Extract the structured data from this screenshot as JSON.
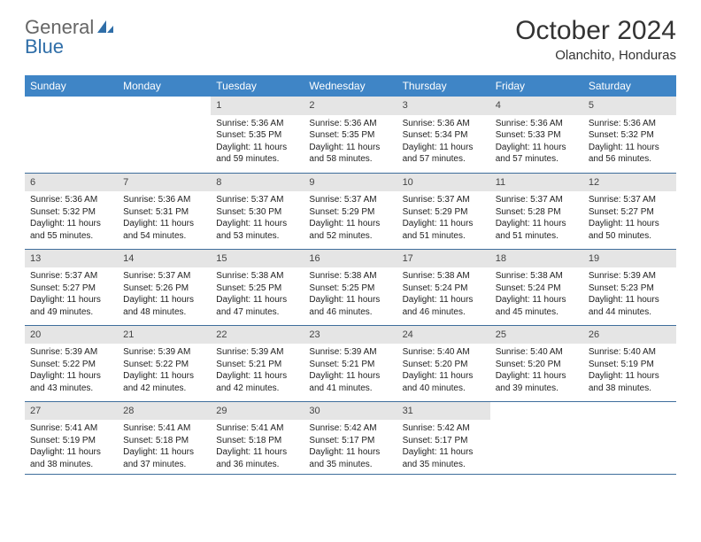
{
  "brand": {
    "part1": "General",
    "part2": "Blue"
  },
  "title": "October 2024",
  "location": "Olanchito, Honduras",
  "colors": {
    "header_bg": "#3f85c6",
    "header_text": "#ffffff",
    "daynum_bg": "#e5e5e5",
    "row_divider": "#3f6e9c",
    "logo_blue": "#2f6ea8",
    "text": "#222222"
  },
  "typography": {
    "title_fontsize": 30,
    "location_fontsize": 15,
    "dayhead_fontsize": 12,
    "body_fontsize": 10
  },
  "day_headers": [
    "Sunday",
    "Monday",
    "Tuesday",
    "Wednesday",
    "Thursday",
    "Friday",
    "Saturday"
  ],
  "weeks": [
    [
      {
        "empty": true
      },
      {
        "empty": true
      },
      {
        "num": "1",
        "sunrise": "Sunrise: 5:36 AM",
        "sunset": "Sunset: 5:35 PM",
        "day1": "Daylight: 11 hours",
        "day2": "and 59 minutes."
      },
      {
        "num": "2",
        "sunrise": "Sunrise: 5:36 AM",
        "sunset": "Sunset: 5:35 PM",
        "day1": "Daylight: 11 hours",
        "day2": "and 58 minutes."
      },
      {
        "num": "3",
        "sunrise": "Sunrise: 5:36 AM",
        "sunset": "Sunset: 5:34 PM",
        "day1": "Daylight: 11 hours",
        "day2": "and 57 minutes."
      },
      {
        "num": "4",
        "sunrise": "Sunrise: 5:36 AM",
        "sunset": "Sunset: 5:33 PM",
        "day1": "Daylight: 11 hours",
        "day2": "and 57 minutes."
      },
      {
        "num": "5",
        "sunrise": "Sunrise: 5:36 AM",
        "sunset": "Sunset: 5:32 PM",
        "day1": "Daylight: 11 hours",
        "day2": "and 56 minutes."
      }
    ],
    [
      {
        "num": "6",
        "sunrise": "Sunrise: 5:36 AM",
        "sunset": "Sunset: 5:32 PM",
        "day1": "Daylight: 11 hours",
        "day2": "and 55 minutes."
      },
      {
        "num": "7",
        "sunrise": "Sunrise: 5:36 AM",
        "sunset": "Sunset: 5:31 PM",
        "day1": "Daylight: 11 hours",
        "day2": "and 54 minutes."
      },
      {
        "num": "8",
        "sunrise": "Sunrise: 5:37 AM",
        "sunset": "Sunset: 5:30 PM",
        "day1": "Daylight: 11 hours",
        "day2": "and 53 minutes."
      },
      {
        "num": "9",
        "sunrise": "Sunrise: 5:37 AM",
        "sunset": "Sunset: 5:29 PM",
        "day1": "Daylight: 11 hours",
        "day2": "and 52 minutes."
      },
      {
        "num": "10",
        "sunrise": "Sunrise: 5:37 AM",
        "sunset": "Sunset: 5:29 PM",
        "day1": "Daylight: 11 hours",
        "day2": "and 51 minutes."
      },
      {
        "num": "11",
        "sunrise": "Sunrise: 5:37 AM",
        "sunset": "Sunset: 5:28 PM",
        "day1": "Daylight: 11 hours",
        "day2": "and 51 minutes."
      },
      {
        "num": "12",
        "sunrise": "Sunrise: 5:37 AM",
        "sunset": "Sunset: 5:27 PM",
        "day1": "Daylight: 11 hours",
        "day2": "and 50 minutes."
      }
    ],
    [
      {
        "num": "13",
        "sunrise": "Sunrise: 5:37 AM",
        "sunset": "Sunset: 5:27 PM",
        "day1": "Daylight: 11 hours",
        "day2": "and 49 minutes."
      },
      {
        "num": "14",
        "sunrise": "Sunrise: 5:37 AM",
        "sunset": "Sunset: 5:26 PM",
        "day1": "Daylight: 11 hours",
        "day2": "and 48 minutes."
      },
      {
        "num": "15",
        "sunrise": "Sunrise: 5:38 AM",
        "sunset": "Sunset: 5:25 PM",
        "day1": "Daylight: 11 hours",
        "day2": "and 47 minutes."
      },
      {
        "num": "16",
        "sunrise": "Sunrise: 5:38 AM",
        "sunset": "Sunset: 5:25 PM",
        "day1": "Daylight: 11 hours",
        "day2": "and 46 minutes."
      },
      {
        "num": "17",
        "sunrise": "Sunrise: 5:38 AM",
        "sunset": "Sunset: 5:24 PM",
        "day1": "Daylight: 11 hours",
        "day2": "and 46 minutes."
      },
      {
        "num": "18",
        "sunrise": "Sunrise: 5:38 AM",
        "sunset": "Sunset: 5:24 PM",
        "day1": "Daylight: 11 hours",
        "day2": "and 45 minutes."
      },
      {
        "num": "19",
        "sunrise": "Sunrise: 5:39 AM",
        "sunset": "Sunset: 5:23 PM",
        "day1": "Daylight: 11 hours",
        "day2": "and 44 minutes."
      }
    ],
    [
      {
        "num": "20",
        "sunrise": "Sunrise: 5:39 AM",
        "sunset": "Sunset: 5:22 PM",
        "day1": "Daylight: 11 hours",
        "day2": "and 43 minutes."
      },
      {
        "num": "21",
        "sunrise": "Sunrise: 5:39 AM",
        "sunset": "Sunset: 5:22 PM",
        "day1": "Daylight: 11 hours",
        "day2": "and 42 minutes."
      },
      {
        "num": "22",
        "sunrise": "Sunrise: 5:39 AM",
        "sunset": "Sunset: 5:21 PM",
        "day1": "Daylight: 11 hours",
        "day2": "and 42 minutes."
      },
      {
        "num": "23",
        "sunrise": "Sunrise: 5:39 AM",
        "sunset": "Sunset: 5:21 PM",
        "day1": "Daylight: 11 hours",
        "day2": "and 41 minutes."
      },
      {
        "num": "24",
        "sunrise": "Sunrise: 5:40 AM",
        "sunset": "Sunset: 5:20 PM",
        "day1": "Daylight: 11 hours",
        "day2": "and 40 minutes."
      },
      {
        "num": "25",
        "sunrise": "Sunrise: 5:40 AM",
        "sunset": "Sunset: 5:20 PM",
        "day1": "Daylight: 11 hours",
        "day2": "and 39 minutes."
      },
      {
        "num": "26",
        "sunrise": "Sunrise: 5:40 AM",
        "sunset": "Sunset: 5:19 PM",
        "day1": "Daylight: 11 hours",
        "day2": "and 38 minutes."
      }
    ],
    [
      {
        "num": "27",
        "sunrise": "Sunrise: 5:41 AM",
        "sunset": "Sunset: 5:19 PM",
        "day1": "Daylight: 11 hours",
        "day2": "and 38 minutes."
      },
      {
        "num": "28",
        "sunrise": "Sunrise: 5:41 AM",
        "sunset": "Sunset: 5:18 PM",
        "day1": "Daylight: 11 hours",
        "day2": "and 37 minutes."
      },
      {
        "num": "29",
        "sunrise": "Sunrise: 5:41 AM",
        "sunset": "Sunset: 5:18 PM",
        "day1": "Daylight: 11 hours",
        "day2": "and 36 minutes."
      },
      {
        "num": "30",
        "sunrise": "Sunrise: 5:42 AM",
        "sunset": "Sunset: 5:17 PM",
        "day1": "Daylight: 11 hours",
        "day2": "and 35 minutes."
      },
      {
        "num": "31",
        "sunrise": "Sunrise: 5:42 AM",
        "sunset": "Sunset: 5:17 PM",
        "day1": "Daylight: 11 hours",
        "day2": "and 35 minutes."
      },
      {
        "empty": true
      },
      {
        "empty": true
      }
    ]
  ]
}
